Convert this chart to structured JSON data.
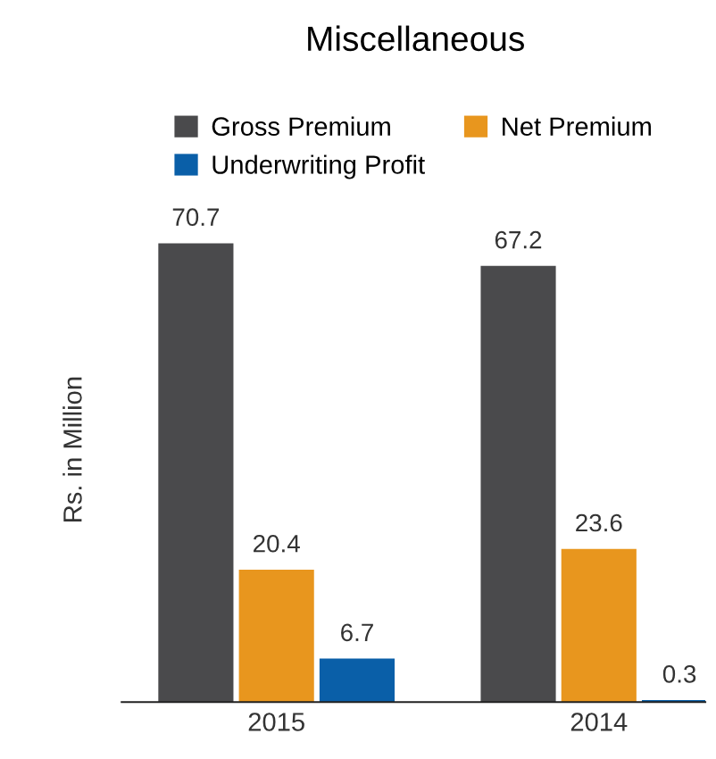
{
  "chart_data": {
    "type": "bar",
    "title": "Miscellaneous",
    "ylabel": "Rs. in Million",
    "categories": [
      "2015",
      "2014"
    ],
    "series": [
      {
        "name": "Gross Premium",
        "color": "#4a4a4c",
        "values": [
          70.7,
          67.2
        ]
      },
      {
        "name": "Net Premium",
        "color": "#e8961e",
        "values": [
          20.4,
          23.6
        ]
      },
      {
        "name": "Underwriting Profit",
        "color": "#0a5fa8",
        "values": [
          6.7,
          0.3
        ]
      }
    ],
    "data_labels": true,
    "legend": "top",
    "grid": false
  }
}
